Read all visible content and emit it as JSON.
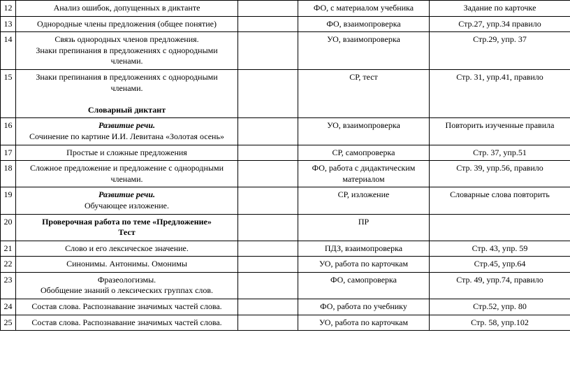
{
  "rows": [
    {
      "num": "12",
      "topic": [
        {
          "text": "Анализ ошибок, допущенных в диктанте"
        }
      ],
      "col3": "",
      "method": "ФО, с материалом учебника",
      "homework": "Задание по карточке"
    },
    {
      "num": "13",
      "topic": [
        {
          "text": "Однородные члены предложения (общее понятие)"
        }
      ],
      "col3": "",
      "method": "ФО, взаимопроверка",
      "homework": "Стр.27, упр.34 правило"
    },
    {
      "num": "14",
      "topic": [
        {
          "text": "Связь однородных членов предложения."
        },
        {
          "text": "Знаки препинания в предложениях с однородными членами."
        }
      ],
      "col3": "",
      "method": "УО, взаимопроверка",
      "homework": "Стр.29,  упр. 37"
    },
    {
      "num": "15",
      "topic": [
        {
          "text": "Знаки препинания в предложениях с однородными членами."
        },
        {
          "text": ""
        },
        {
          "text": "Словарный диктант",
          "bold": true
        }
      ],
      "col3": "",
      "method": "СР, тест",
      "homework": "Стр. 31, упр.41, правило"
    },
    {
      "num": "16",
      "topic": [
        {
          "text": "Развитие речи.",
          "bold": true,
          "italic": true
        },
        {
          "text": "Сочинение по картине И.И. Левитана «Золотая осень»"
        }
      ],
      "col3": "",
      "method": "УО, взаимопроверка",
      "homework": "Повторить изученные правила"
    },
    {
      "num": "17",
      "topic": [
        {
          "text": "Простые и сложные предложения"
        }
      ],
      "col3": "",
      "method": "СР, самопроверка",
      "homework": "Стр. 37, упр.51"
    },
    {
      "num": "18",
      "topic": [
        {
          "text": "Сложное предложение и предложение с однородными членами."
        }
      ],
      "col3": "",
      "method": "ФО, работа с дидактическим материалом",
      "homework": "Стр. 39, упр.56, правило"
    },
    {
      "num": "19",
      "topic": [
        {
          "text": "Развитие речи.",
          "bold": true,
          "italic": true
        },
        {
          "text": "Обучающее изложение."
        }
      ],
      "col3": "",
      "method": "СР, изложение",
      "homework": "Словарные слова повторить"
    },
    {
      "num": "20",
      "topic": [
        {
          "text": "Проверочная работа  по теме «Предложение»",
          "bold": true
        },
        {
          "text": "Тест",
          "bold": true
        }
      ],
      "col3": "",
      "method": "ПР",
      "homework": ""
    },
    {
      "num": "21",
      "topic": [
        {
          "text": "Слово и его лексическое значение."
        }
      ],
      "col3": "",
      "method": "ПДЗ, взаимопроверка",
      "homework": "Стр. 43, упр. 59"
    },
    {
      "num": "22",
      "topic": [
        {
          "text": "Синонимы. Антонимы. Омонимы"
        }
      ],
      "col3": "",
      "method": "УО, работа по карточкам",
      "homework": "Стр.45, упр.64"
    },
    {
      "num": "23",
      "topic": [
        {
          "text": "Фразеологизмы."
        },
        {
          "text": "Обобщение знаний о лексических группах слов."
        }
      ],
      "col3": "",
      "method": "ФО, самопроверка",
      "homework": "Стр. 49, упр.74, правило"
    },
    {
      "num": "24",
      "topic": [
        {
          "text": "Состав слова. Распознавание значимых частей слова."
        }
      ],
      "col3": "",
      "method": "ФО, работа по учебнику",
      "homework": "Стр.52, упр. 80"
    },
    {
      "num": "25",
      "topic": [
        {
          "text": "Состав слова. Распознавание значимых частей слова."
        }
      ],
      "col3": "",
      "method": "УО, работа по карточкам",
      "homework": "Стр. 58, упр.102"
    }
  ]
}
